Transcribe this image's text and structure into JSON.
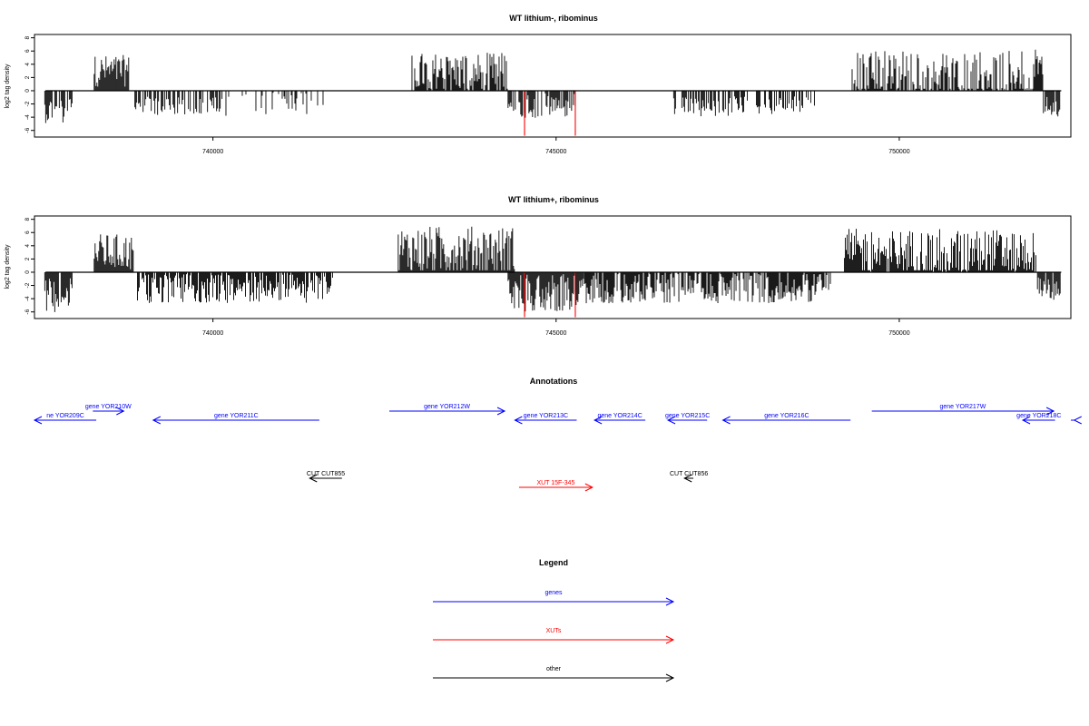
{
  "chart_data": [
    {
      "type": "bar",
      "title": "WT lithium-, ribominus",
      "ylabel": "log2 tag density",
      "xlim": [
        737400,
        752500
      ],
      "ylim": [
        -7,
        8.5
      ],
      "x_ticks": [
        740000,
        745000,
        750000
      ],
      "y_ticks": [
        8,
        6,
        4,
        2,
        0,
        -2,
        -4,
        -6
      ],
      "red_markers_x": [
        744540,
        745280
      ],
      "red_markers_min": -6.8,
      "segments": [
        {
          "x0": 737550,
          "x1": 737950,
          "sign": -1,
          "mean": 2.9,
          "amp": 2.0,
          "density": 0.8
        },
        {
          "x0": 738270,
          "x1": 738780,
          "sign": 1,
          "mean": 3.0,
          "amp": 2.4,
          "density": 1.0
        },
        {
          "x0": 738850,
          "x1": 740150,
          "sign": -1,
          "mean": 2.3,
          "amp": 1.4,
          "density": 0.55
        },
        {
          "x0": 740150,
          "x1": 741750,
          "sign": -1,
          "mean": 2.0,
          "amp": 1.8,
          "density": 0.25
        },
        {
          "x0": 742900,
          "x1": 744300,
          "sign": 1,
          "mean": 2.8,
          "amp": 3.0,
          "density": 0.85
        },
        {
          "x0": 744300,
          "x1": 745300,
          "sign": -1,
          "mean": 2.3,
          "amp": 1.9,
          "density": 0.65
        },
        {
          "x0": 746700,
          "x1": 747600,
          "sign": -1,
          "mean": 2.5,
          "amp": 1.5,
          "density": 0.5
        },
        {
          "x0": 747600,
          "x1": 748800,
          "sign": -1,
          "mean": 2.2,
          "amp": 1.4,
          "density": 0.55
        },
        {
          "x0": 749300,
          "x1": 752100,
          "sign": 1,
          "mean": 2.6,
          "amp": 3.6,
          "density": 0.75
        },
        {
          "x0": 752100,
          "x1": 752350,
          "sign": -1,
          "mean": 2.4,
          "amp": 1.5,
          "density": 0.8
        }
      ]
    },
    {
      "type": "bar",
      "title": "WT lithium+, ribominus",
      "ylabel": "log2 tag density",
      "xlim": [
        737400,
        752500
      ],
      "ylim": [
        -7,
        8.5
      ],
      "x_ticks": [
        740000,
        745000,
        750000
      ],
      "y_ticks": [
        8,
        6,
        4,
        2,
        0,
        -2,
        -4,
        -6
      ],
      "red_markers_x": [
        744540,
        745280
      ],
      "red_markers_min": -6.8,
      "segments": [
        {
          "x0": 737550,
          "x1": 737950,
          "sign": -1,
          "mean": 3.5,
          "amp": 2.6,
          "density": 0.9
        },
        {
          "x0": 738270,
          "x1": 738850,
          "sign": 1,
          "mean": 3.0,
          "amp": 2.8,
          "density": 1.0
        },
        {
          "x0": 738900,
          "x1": 741750,
          "sign": -1,
          "mean": 2.5,
          "amp": 2.2,
          "density": 0.85
        },
        {
          "x0": 742700,
          "x1": 744400,
          "sign": 1,
          "mean": 3.2,
          "amp": 3.8,
          "density": 1.0
        },
        {
          "x0": 744300,
          "x1": 745400,
          "sign": -1,
          "mean": 3.0,
          "amp": 3.0,
          "density": 1.0
        },
        {
          "x0": 745400,
          "x1": 749000,
          "sign": -1,
          "mean": 2.3,
          "amp": 2.4,
          "density": 0.85
        },
        {
          "x0": 749200,
          "x1": 752000,
          "sign": 1,
          "mean": 2.8,
          "amp": 3.8,
          "density": 0.95
        },
        {
          "x0": 752000,
          "x1": 752350,
          "sign": -1,
          "mean": 2.6,
          "amp": 1.8,
          "density": 0.9
        }
      ]
    }
  ],
  "annotations": {
    "title": "Annotations",
    "features": [
      {
        "label": "ne YOR209C",
        "start": 737400,
        "end": 738300,
        "dir": -1,
        "row": 0,
        "kind": "gene",
        "color": "#0000ff"
      },
      {
        "label": "gene YOR210W",
        "start": 738250,
        "end": 738700,
        "dir": 1,
        "row": 1,
        "kind": "gene",
        "color": "#0000ff"
      },
      {
        "label": "gene YOR211C",
        "start": 739130,
        "end": 741550,
        "dir": -1,
        "row": 0,
        "kind": "gene",
        "color": "#0000ff"
      },
      {
        "label": "gene YOR212W",
        "start": 742570,
        "end": 744250,
        "dir": 1,
        "row": 1,
        "kind": "gene",
        "color": "#0000ff"
      },
      {
        "label": "gene YOR213C",
        "start": 744400,
        "end": 745300,
        "dir": -1,
        "row": 0,
        "kind": "gene",
        "color": "#0000ff"
      },
      {
        "label": "gene YOR214C",
        "start": 745560,
        "end": 746300,
        "dir": -1,
        "row": 0,
        "kind": "gene",
        "color": "#0000ff"
      },
      {
        "label": "gene YOR215C",
        "start": 746630,
        "end": 747200,
        "dir": -1,
        "row": 0,
        "kind": "gene",
        "color": "#0000ff"
      },
      {
        "label": "gene YOR216C",
        "start": 747430,
        "end": 749290,
        "dir": -1,
        "row": 0,
        "kind": "gene",
        "color": "#0000ff"
      },
      {
        "label": "gene YOR217W",
        "start": 749600,
        "end": 752250,
        "dir": 1,
        "row": 1,
        "kind": "gene",
        "color": "#0000ff"
      },
      {
        "label": "gene YOR218C",
        "start": 751800,
        "end": 752270,
        "dir": -1,
        "row": 0,
        "kind": "gene",
        "color": "#0000ff"
      },
      {
        "label": "",
        "start": 752550,
        "end": 753400,
        "dir": -1,
        "row": 0,
        "kind": "gene",
        "color": "#0000ff"
      },
      {
        "label": "CUT CUT855",
        "start": 741410,
        "end": 741880,
        "dir": -1,
        "row": 2,
        "kind": "other",
        "color": "#000000"
      },
      {
        "label": "CUT CUT856",
        "start": 746870,
        "end": 747000,
        "dir": -1,
        "row": 2,
        "kind": "other",
        "color": "#000000"
      },
      {
        "label": "XUT 15F-345",
        "start": 744460,
        "end": 745530,
        "dir": 1,
        "row": 3,
        "kind": "XUT",
        "color": "#ff0000"
      }
    ]
  },
  "legend": {
    "title": "Legend",
    "items": [
      {
        "label": "genes",
        "color": "#0000ff"
      },
      {
        "label": "XUTs",
        "color": "#ff0000"
      },
      {
        "label": "other",
        "color": "#000000"
      }
    ]
  }
}
